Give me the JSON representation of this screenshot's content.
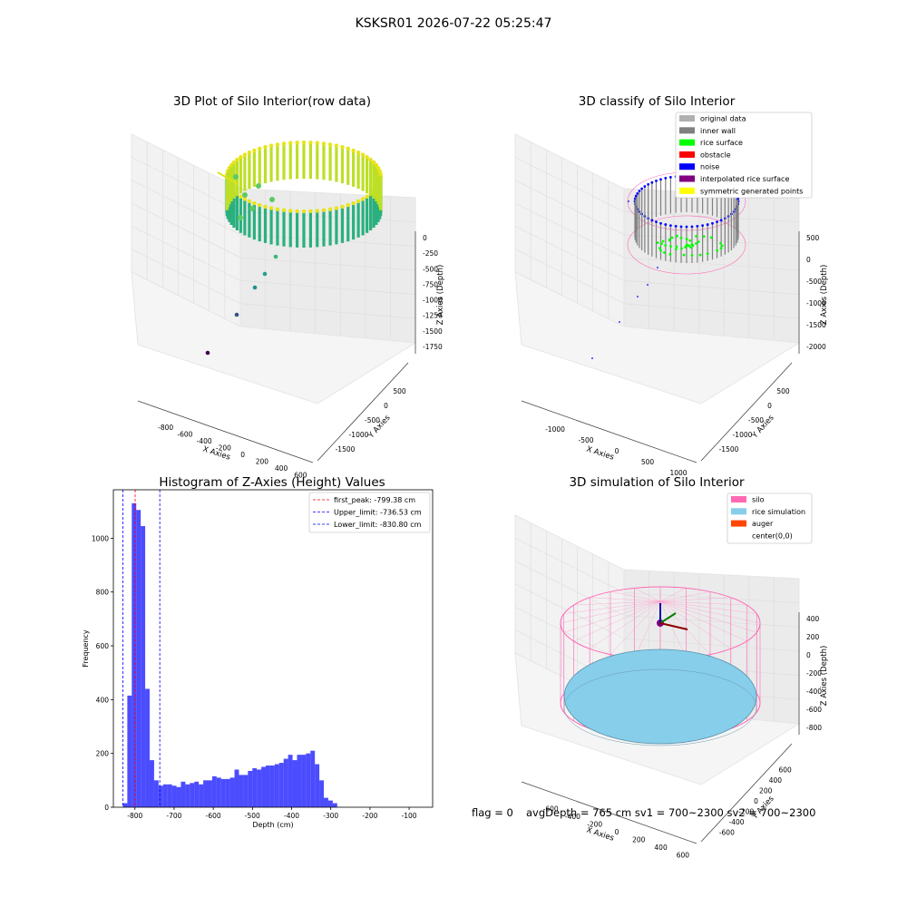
{
  "figure": {
    "title": "KSKSR01 2026-07-22 05:25:47"
  },
  "panels": {
    "raw": {
      "title": "3D Plot of Silo Interior(row data)",
      "xlabel": "X Axies",
      "ylabel": "Y Axies",
      "zlabel": "Z Axies (Depth)",
      "xticks": [
        "-800",
        "-600",
        "-400",
        "-200",
        "0",
        "200",
        "400",
        "600"
      ],
      "yticks": [
        "500",
        "0",
        "-500",
        "-1000",
        "-1500"
      ],
      "zticks": [
        "0",
        "-250",
        "-500",
        "-750",
        "-1000",
        "-1250",
        "-1500",
        "-1750"
      ]
    },
    "classify": {
      "title": "3D classify of Silo Interior",
      "xlabel": "X Axies",
      "ylabel": "Y Axies",
      "zlabel": "Z Axies (Depth)",
      "xticks": [
        "-1000",
        "-500",
        "0",
        "500",
        "1000"
      ],
      "yticks": [
        "500",
        "0",
        "-500",
        "-1000",
        "-1500"
      ],
      "zticks": [
        "500",
        "0",
        "-500",
        "-1000",
        "-1500",
        "-2000"
      ],
      "legend": [
        {
          "label": "original data",
          "color": "#b0b0b0"
        },
        {
          "label": "inner wall",
          "color": "#808080"
        },
        {
          "label": "rice surface",
          "color": "#00ff00"
        },
        {
          "label": "obstacle",
          "color": "#ff0000"
        },
        {
          "label": "noise",
          "color": "#0000ff"
        },
        {
          "label": "interpolated rice surface",
          "color": "#800080"
        },
        {
          "label": "symmetric generated points",
          "color": "#ffff00"
        }
      ]
    },
    "simulation": {
      "title": "3D simulation of Silo Interior",
      "xlabel": "X Axies",
      "ylabel": "Y Axies",
      "zlabel": "Z Axies (Depth)",
      "xticks": [
        "-600",
        "-400",
        "-200",
        "0",
        "200",
        "400",
        "600"
      ],
      "yticks": [
        "600",
        "400",
        "200",
        "0",
        "-200",
        "-400",
        "-600"
      ],
      "zticks": [
        "400",
        "200",
        "0",
        "-200",
        "-400",
        "-600",
        "-800"
      ],
      "legend": [
        {
          "label": "silo",
          "color": "#ff69b4"
        },
        {
          "label": "rice simulation",
          "color": "#87ceeb"
        },
        {
          "label": "auger",
          "color": "#ff4500"
        },
        {
          "label": "center(0,0)",
          "color": ""
        }
      ]
    }
  },
  "footer": {
    "flag": "flag = 0",
    "summary": "avgDepth = 765 cm  sv1 = 700~2300  sv2 = 700~2300"
  },
  "chart_data": [
    {
      "type": "bar",
      "title": "Histogram of Z-Axies (Height) Values",
      "xlabel": "Depth (cm)",
      "ylabel": "Frequency",
      "xlim": [
        -855,
        -40
      ],
      "ylim": [
        0,
        1180
      ],
      "xticks": [
        -800,
        -700,
        -600,
        -500,
        -400,
        -300,
        -200,
        -100
      ],
      "yticks": [
        0,
        200,
        400,
        600,
        800,
        1000
      ],
      "bin_width": 11.4,
      "bin_start": -830.8,
      "values": [
        15,
        415,
        1130,
        1105,
        1045,
        440,
        175,
        100,
        80,
        85,
        85,
        80,
        75,
        95,
        85,
        90,
        95,
        85,
        100,
        100,
        115,
        110,
        105,
        105,
        110,
        140,
        120,
        120,
        135,
        145,
        140,
        150,
        155,
        155,
        160,
        165,
        180,
        195,
        175,
        195,
        195,
        200,
        210,
        160,
        100,
        35,
        25,
        15
      ],
      "color": "#0000ff",
      "vlines": [
        {
          "label": "first_peak: -799.38 cm",
          "x": -799.38,
          "color": "#ff0000"
        },
        {
          "label": "Upper_limit: -736.53 cm",
          "x": -736.53,
          "color": "#0000ff"
        },
        {
          "label": "Lower_limit: -830.80 cm",
          "x": -830.8,
          "color": "#0000ff"
        }
      ],
      "legend": "top-right"
    }
  ]
}
